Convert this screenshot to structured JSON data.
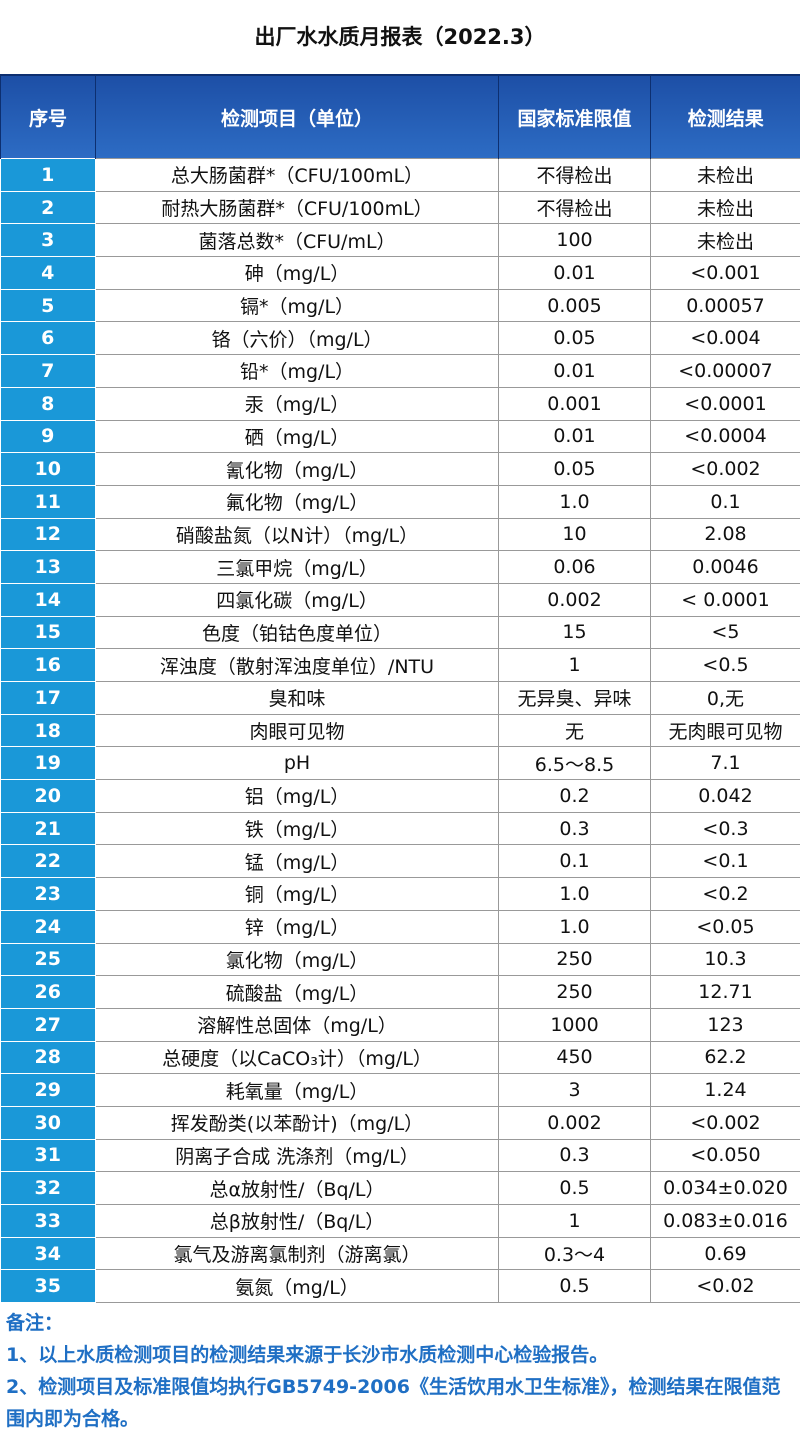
{
  "title": "出厂水水质月报表（2022.3）",
  "table": {
    "header": [
      "序号",
      "检测项目（单位）",
      "国家标准限值",
      "检测结果"
    ],
    "rows": [
      [
        "1",
        "总大肠菌群*（CFU/100mL）",
        "不得检出",
        "未检出"
      ],
      [
        "2",
        "耐热大肠菌群*（CFU/100mL）",
        "不得检出",
        "未检出"
      ],
      [
        "3",
        "菌落总数*（CFU/mL）",
        "100",
        "未检出"
      ],
      [
        "4",
        "砷（mg/L）",
        "0.01",
        "<0.001"
      ],
      [
        "5",
        "镉*（mg/L）",
        "0.005",
        "0.00057"
      ],
      [
        "6",
        "铬（六价）（mg/L）",
        "0.05",
        "<0.004"
      ],
      [
        "7",
        "铅*（mg/L）",
        "0.01",
        "<0.00007"
      ],
      [
        "8",
        "汞（mg/L）",
        "0.001",
        "<0.0001"
      ],
      [
        "9",
        "硒（mg/L）",
        "0.01",
        "<0.0004"
      ],
      [
        "10",
        "氰化物（mg/L）",
        "0.05",
        "<0.002"
      ],
      [
        "11",
        "氟化物（mg/L）",
        "1.0",
        "0.1"
      ],
      [
        "12",
        "硝酸盐氮（以N计）（mg/L）",
        "10",
        "2.08"
      ],
      [
        "13",
        "三氯甲烷（mg/L）",
        "0.06",
        "0.0046"
      ],
      [
        "14",
        "四氯化碳（mg/L）",
        "0.002",
        "< 0.0001"
      ],
      [
        "15",
        "色度（铂钴色度单位）",
        "15",
        "<5"
      ],
      [
        "16",
        "浑浊度（散射浑浊度单位）/NTU",
        "1",
        "<0.5"
      ],
      [
        "17",
        "臭和味",
        "无异臭、异味",
        "0,无"
      ],
      [
        "18",
        "肉眼可见物",
        "无",
        "无肉眼可见物"
      ],
      [
        "19",
        "pH",
        "6.5～8.5",
        "7.1"
      ],
      [
        "20",
        "铝（mg/L）",
        "0.2",
        "0.042"
      ],
      [
        "21",
        "铁（mg/L）",
        "0.3",
        "<0.3"
      ],
      [
        "22",
        "锰（mg/L）",
        "0.1",
        "<0.1"
      ],
      [
        "23",
        "铜（mg/L）",
        "1.0",
        "<0.2"
      ],
      [
        "24",
        "锌（mg/L）",
        "1.0",
        "<0.05"
      ],
      [
        "25",
        "氯化物（mg/L）",
        "250",
        "10.3"
      ],
      [
        "26",
        "硫酸盐（mg/L）",
        "250",
        "12.71"
      ],
      [
        "27",
        "溶解性总固体（mg/L）",
        "1000",
        "123"
      ],
      [
        "28",
        "总硬度（以CaCO₃计）（mg/L）",
        "450",
        "62.2"
      ],
      [
        "29",
        "耗氧量（mg/L）",
        "3",
        "1.24"
      ],
      [
        "30",
        "挥发酚类(以苯酚计)（mg/L）",
        "0.002",
        "<0.002"
      ],
      [
        "31",
        "阴离子合成 洗涤剂（mg/L）",
        "0.3",
        "<0.050"
      ],
      [
        "32",
        "总α放射性/（Bq/L）",
        "0.5",
        "0.034±0.020"
      ],
      [
        "33",
        "总β放射性/（Bq/L）",
        "1",
        "0.083±0.016"
      ],
      [
        "34",
        "氯气及游离氯制剂（游离氯）",
        "0.3～4",
        "0.69"
      ],
      [
        "35",
        "氨氮（mg/L）",
        "0.5",
        "<0.02"
      ]
    ]
  },
  "notes": {
    "title": "备注：",
    "items": [
      "1、以上水质检测项目的检测结果来源于长沙市水质检测中心检验报告。",
      "2、检测项目及标准限值均执行GB5749-2006《生活饮用水卫生标准》，检测结果在限值范围内即为合格。"
    ]
  }
}
